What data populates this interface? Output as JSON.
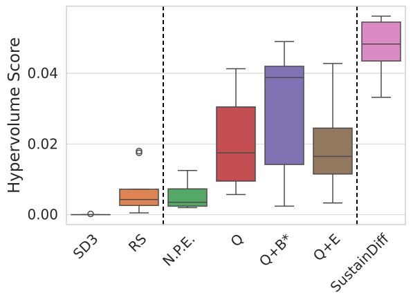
{
  "chart_data": {
    "type": "box",
    "ylabel": "Hypervolume Score",
    "ylim": [
      -0.0028,
      0.059
    ],
    "yticks": [
      0.0,
      0.02,
      0.04
    ],
    "ytick_labels": [
      "0.00",
      "0.02",
      "0.04"
    ],
    "grid": "horizontal",
    "categories": [
      "SD3",
      "RS",
      "N.P.E.",
      "Q",
      "Q+B*",
      "Q+E",
      "SustainDiff"
    ],
    "boxes": [
      {
        "label": "SD3",
        "color": "#4c72b0",
        "min": 0.0,
        "q1": 0.0,
        "median": 0.0,
        "q3": 0.0,
        "max": 0.0,
        "outliers": [
          0.0002
        ]
      },
      {
        "label": "RS",
        "color": "#dd8452",
        "min": 0.0005,
        "q1": 0.0026,
        "median": 0.0043,
        "q3": 0.0072,
        "max": 0.0072,
        "outliers": [
          0.0175,
          0.018
        ]
      },
      {
        "label": "N.P.E.",
        "color": "#55a868",
        "min": 0.002,
        "q1": 0.0024,
        "median": 0.0035,
        "q3": 0.0073,
        "max": 0.0125,
        "outliers": []
      },
      {
        "label": "Q",
        "color": "#c44e52",
        "min": 0.0057,
        "q1": 0.0095,
        "median": 0.0175,
        "q3": 0.0305,
        "max": 0.0413,
        "outliers": []
      },
      {
        "label": "Q+B*",
        "color": "#8172b3",
        "min": 0.0024,
        "q1": 0.0142,
        "median": 0.0388,
        "q3": 0.042,
        "max": 0.049,
        "outliers": []
      },
      {
        "label": "Q+E",
        "color": "#937860",
        "min": 0.0033,
        "q1": 0.0115,
        "median": 0.0165,
        "q3": 0.0245,
        "max": 0.0428,
        "outliers": []
      },
      {
        "label": "SustainDiff",
        "color": "#da8bc3",
        "min": 0.0332,
        "q1": 0.0435,
        "median": 0.0483,
        "q3": 0.0545,
        "max": 0.0562,
        "outliers": []
      }
    ],
    "dividers_after": [
      "RS",
      "Q+E"
    ]
  }
}
